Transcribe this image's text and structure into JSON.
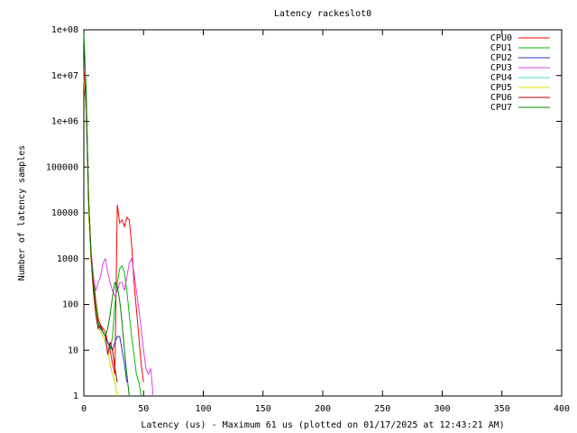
{
  "chart_data": {
    "type": "line",
    "title": "Latency rackeslot0",
    "x_label": "Latency (us) - Maximum 61 us (plotted on 01/17/2025 at 12:43:21 AM)",
    "y_label": "Number of latency samples",
    "yscale": "log",
    "legend": "upper right",
    "xlim": [
      0,
      400
    ],
    "xticks": [
      0,
      50,
      100,
      150,
      200,
      250,
      300,
      350,
      400
    ],
    "ylim": [
      1,
      100000000
    ],
    "yticks": [
      1,
      10,
      100,
      1000,
      10000,
      100000,
      {
        "value": 1000000,
        "label": "1e+06"
      },
      {
        "value": 10000000,
        "label": "1e+07"
      },
      {
        "value": 100000000,
        "label": "1e+08"
      }
    ],
    "x": [
      0,
      2,
      4,
      6,
      8,
      10,
      12,
      14,
      16,
      18,
      20,
      22,
      24,
      26,
      28,
      30,
      32,
      34,
      36,
      38,
      40,
      42,
      44,
      46,
      48,
      50,
      52,
      54,
      56,
      58,
      60,
      62
    ],
    "series": [
      {
        "name": "CPU0",
        "color": "#ff0000",
        "values": [
          10000000,
          3000000,
          20000,
          1500,
          400,
          120,
          50,
          35,
          30,
          25,
          15,
          10,
          5,
          3,
          15000,
          6000,
          7000,
          5000,
          8000,
          7000,
          2000,
          300,
          80,
          20,
          5,
          2,
          null,
          null,
          null,
          null,
          null,
          null
        ]
      },
      {
        "name": "CPU1",
        "color": "#00c000",
        "values": [
          12000000,
          2000000,
          15000,
          1200,
          300,
          100,
          40,
          30,
          25,
          20,
          15,
          10,
          20,
          100,
          300,
          600,
          700,
          500,
          200,
          60,
          20,
          8,
          3,
          2,
          1,
          null,
          null,
          null,
          null,
          null,
          null,
          null
        ]
      },
      {
        "name": "CPU2",
        "color": "#3030c0",
        "values": [
          9000000,
          1500000,
          12000,
          1000,
          250,
          80,
          35,
          30,
          25,
          20,
          15,
          12,
          10,
          15,
          20,
          20,
          10,
          5,
          2,
          null,
          null,
          null,
          null,
          null,
          null,
          null,
          null,
          null,
          null,
          null,
          null,
          null
        ]
      },
      {
        "name": "CPU3",
        "color": "#e040e0",
        "values": [
          8000000,
          1800000,
          15000,
          1500,
          400,
          200,
          300,
          400,
          800,
          1000,
          500,
          300,
          200,
          150,
          200,
          300,
          300,
          200,
          400,
          800,
          1000,
          500,
          200,
          80,
          30,
          10,
          4,
          3,
          4,
          1,
          null,
          null
        ]
      },
      {
        "name": "CPU4",
        "color": "#40e0d0",
        "values": [
          10000000,
          2000000,
          10000,
          1000,
          200,
          80,
          35,
          25,
          20,
          15,
          10,
          5,
          3,
          2,
          1,
          null,
          null,
          null,
          null,
          null,
          null,
          null,
          null,
          null,
          null,
          null,
          null,
          null,
          null,
          null,
          null,
          null
        ]
      },
      {
        "name": "CPU5",
        "color": "#e0e000",
        "values": [
          9000000,
          1800000,
          9000,
          900,
          180,
          70,
          30,
          25,
          20,
          15,
          10,
          5,
          3,
          2,
          1,
          null,
          null,
          null,
          null,
          null,
          null,
          null,
          null,
          null,
          null,
          null,
          null,
          null,
          null,
          null,
          null,
          null
        ]
      },
      {
        "name": "CPU6",
        "color": "#a00000",
        "values": [
          14000000,
          2500000,
          20000,
          1200,
          200,
          60,
          30,
          35,
          25,
          20,
          8,
          15,
          10,
          4,
          2,
          null,
          null,
          null,
          null,
          null,
          null,
          null,
          null,
          null,
          null,
          null,
          null,
          null,
          null,
          null,
          null,
          null
        ]
      },
      {
        "name": "CPU7",
        "color": "#008000",
        "values": [
          80000000,
          4000000,
          18000,
          1300,
          300,
          100,
          40,
          30,
          25,
          20,
          30,
          60,
          150,
          300,
          250,
          120,
          40,
          10,
          3,
          1,
          null,
          null,
          null,
          null,
          null,
          null,
          null,
          null,
          null,
          null,
          null,
          null
        ]
      }
    ]
  }
}
